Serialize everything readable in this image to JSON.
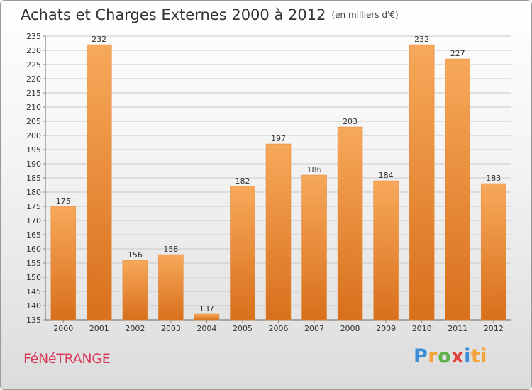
{
  "title": {
    "main": "Achats et Charges Externes 2000 à 2012",
    "unit": "(en milliers d'€)"
  },
  "footer": {
    "city": "FéNéTRANGE",
    "logo": "Proxiti",
    "logo_letters": [
      "P",
      "r",
      "o",
      "x",
      "i",
      "ti"
    ]
  },
  "colors": {
    "bar_top": "#f7a85a",
    "bar_bottom": "#d8701c",
    "grid": "#c8c8c8",
    "axis_text": "#333333",
    "city": "#d63a58"
  },
  "chart_data": {
    "type": "bar",
    "title": "Achats et Charges Externes 2000 à 2012",
    "subtitle": "(en milliers d'€)",
    "xlabel": "",
    "ylabel": "",
    "categories": [
      "2000",
      "2001",
      "2002",
      "2003",
      "2004",
      "2005",
      "2006",
      "2007",
      "2008",
      "2009",
      "2010",
      "2011",
      "2012"
    ],
    "values": [
      175,
      232,
      156,
      158,
      137,
      182,
      197,
      186,
      203,
      184,
      232,
      227,
      183
    ],
    "ylim": [
      135,
      235
    ],
    "ytick_step": 5,
    "grid": true,
    "data_labels": true
  }
}
